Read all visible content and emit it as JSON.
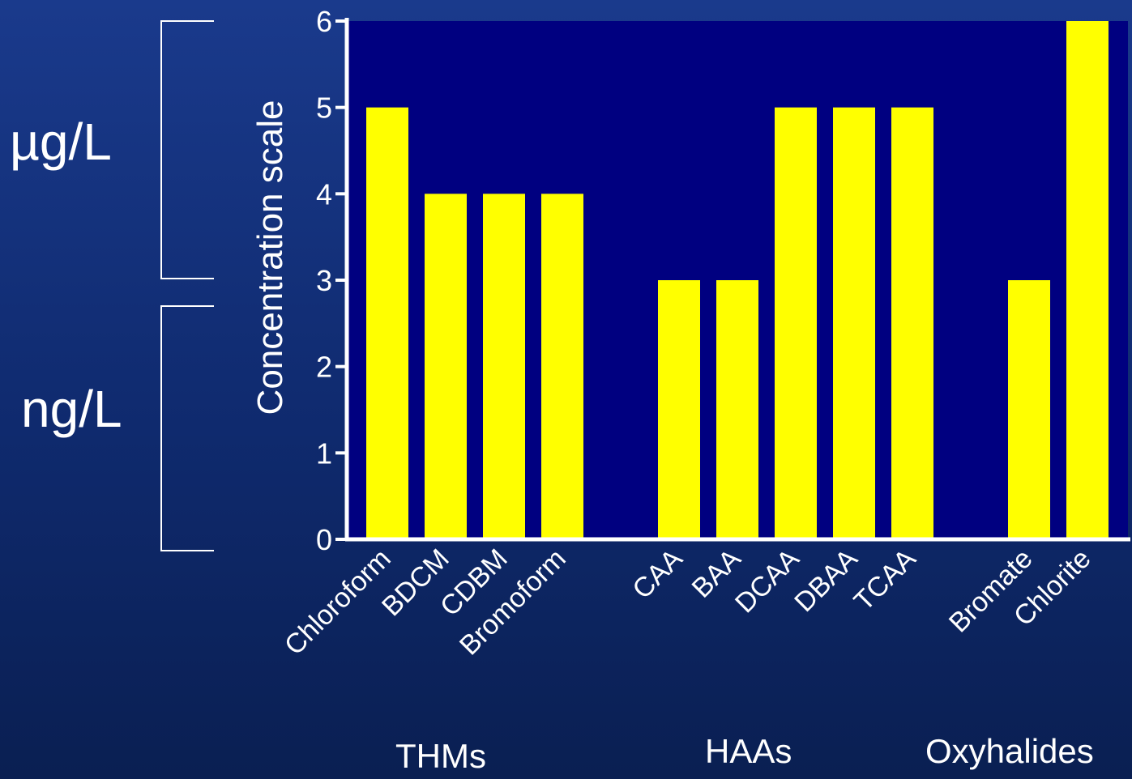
{
  "units": {
    "upper": "µg/L",
    "lower": "ng/L"
  },
  "groups": [
    "THMs",
    "HAAs",
    "Oxyhalides"
  ],
  "colors": {
    "bar": "#ffff00",
    "plot_bg": "#000080",
    "axis": "#ffffff",
    "text": "#ffffff"
  },
  "chart_data": {
    "type": "bar",
    "ylabel": "Concentration scale",
    "ylim": [
      0,
      6
    ],
    "yticks": [
      "0",
      "1",
      "2",
      "3",
      "4",
      "5",
      "6"
    ],
    "categories": [
      "Chloroform",
      "BDCM",
      "CDBM",
      "Bromoform",
      "CAA",
      "BAA",
      "DCAA",
      "DBAA",
      "TCAA",
      "Bromate",
      "Chlorite"
    ],
    "values": [
      5,
      4,
      4,
      4,
      3,
      3,
      5,
      5,
      5,
      3,
      6
    ],
    "grid": false
  }
}
